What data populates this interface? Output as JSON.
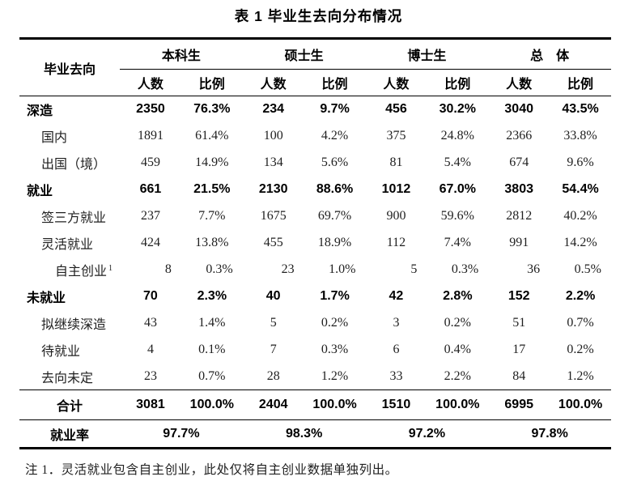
{
  "colors": {
    "text": "#000000",
    "background": "#ffffff"
  },
  "page": {
    "title": "表 1 毕业生去向分布情况"
  },
  "table": {
    "row_header": "毕业去向",
    "groups": [
      "本科生",
      "硕士生",
      "博士生",
      "总　体"
    ],
    "subheaders": [
      "人数",
      "比例"
    ],
    "rows": [
      {
        "label": "深造",
        "indent": 0,
        "bold": true,
        "values": [
          "2350",
          "76.3%",
          "234",
          "9.7%",
          "456",
          "30.2%",
          "3040",
          "43.5%"
        ]
      },
      {
        "label": "国内",
        "indent": 1,
        "values": [
          "1891",
          "61.4%",
          "100",
          "4.2%",
          "375",
          "24.8%",
          "2366",
          "33.8%"
        ]
      },
      {
        "label": "出国（境）",
        "indent": 1,
        "values": [
          "459",
          "14.9%",
          "134",
          "5.6%",
          "81",
          "5.4%",
          "674",
          "9.6%"
        ]
      },
      {
        "label": "就业",
        "indent": 0,
        "bold": true,
        "values": [
          "661",
          "21.5%",
          "2130",
          "88.6%",
          "1012",
          "67.0%",
          "3803",
          "54.4%"
        ]
      },
      {
        "label": "签三方就业",
        "indent": 1,
        "values": [
          "237",
          "7.7%",
          "1675",
          "69.7%",
          "900",
          "59.6%",
          "2812",
          "40.2%"
        ]
      },
      {
        "label": "灵活就业",
        "indent": 1,
        "values": [
          "424",
          "13.8%",
          "455",
          "18.9%",
          "112",
          "7.4%",
          "991",
          "14.2%"
        ]
      },
      {
        "label": "自主创业",
        "sup": "1",
        "indent": 2,
        "align": "right",
        "values": [
          "8",
          "0.3%",
          "23",
          "1.0%",
          "5",
          "0.3%",
          "36",
          "0.5%"
        ]
      },
      {
        "label": "未就业",
        "indent": 0,
        "bold": true,
        "values": [
          "70",
          "2.3%",
          "40",
          "1.7%",
          "42",
          "2.8%",
          "152",
          "2.2%"
        ]
      },
      {
        "label": "拟继续深造",
        "indent": 1,
        "values": [
          "43",
          "1.4%",
          "5",
          "0.2%",
          "3",
          "0.2%",
          "51",
          "0.7%"
        ]
      },
      {
        "label": "待就业",
        "indent": 1,
        "values": [
          "4",
          "0.1%",
          "7",
          "0.3%",
          "6",
          "0.4%",
          "17",
          "0.2%"
        ]
      },
      {
        "label": "去向未定",
        "indent": 1,
        "values": [
          "23",
          "0.7%",
          "28",
          "1.2%",
          "33",
          "2.2%",
          "84",
          "1.2%"
        ]
      },
      {
        "label": "合计",
        "bold": true,
        "total": true,
        "label_align": "center",
        "values": [
          "3081",
          "100.0%",
          "2404",
          "100.0%",
          "1510",
          "100.0%",
          "6995",
          "100.0%"
        ]
      }
    ],
    "rate_row": {
      "label": "就业率",
      "values": [
        "97.7%",
        "98.3%",
        "97.2%",
        "97.8%"
      ]
    }
  },
  "footnote": "注 1．灵活就业包含自主创业，此处仅将自主创业数据单独列出。"
}
